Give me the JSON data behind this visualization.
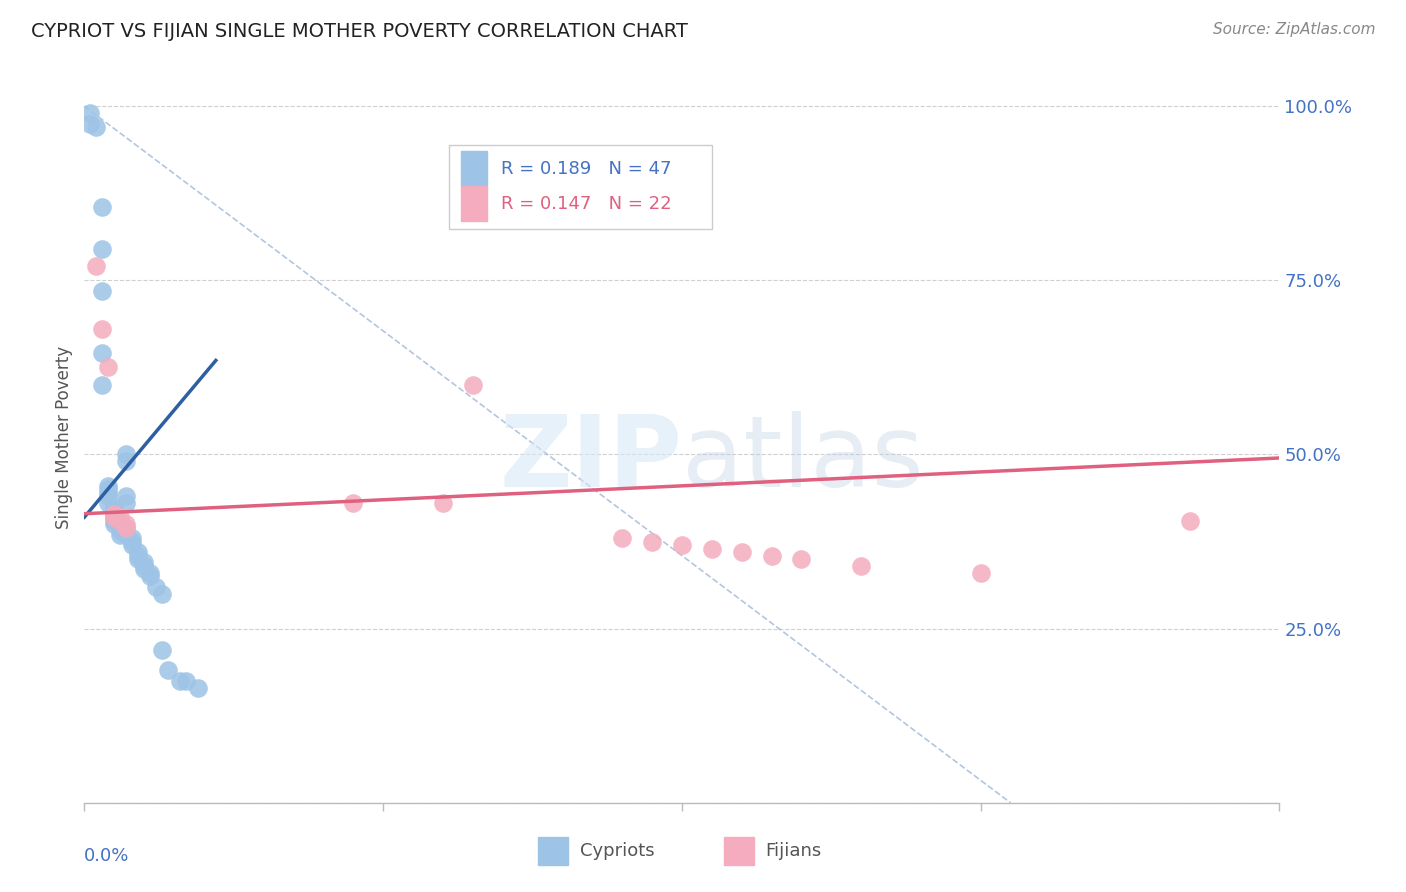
{
  "title": "CYPRIOT VS FIJIAN SINGLE MOTHER POVERTY CORRELATION CHART",
  "source": "Source: ZipAtlas.com",
  "ylabel": "Single Mother Poverty",
  "xmin": 0.0,
  "xmax": 0.2,
  "ymin": 0.0,
  "ymax": 1.05,
  "cypriot_color": "#9dc3e6",
  "fijian_color": "#f4acbe",
  "cypriot_line_color": "#2e5fa3",
  "fijian_line_color": "#e06080",
  "ref_line_color": "#a0b8d8",
  "R_cypriot": "0.189",
  "N_cypriot": "47",
  "R_fijian": "0.147",
  "N_fijian": "22",
  "watermark_color": "#d8e8f5",
  "grid_color": "#d0d0d0",
  "axis_label_color": "#4472c4",
  "background_color": "#ffffff",
  "cypriot_x": [
    0.001,
    0.001,
    0.002,
    0.003,
    0.003,
    0.003,
    0.003,
    0.003,
    0.004,
    0.004,
    0.004,
    0.004,
    0.004,
    0.005,
    0.005,
    0.005,
    0.005,
    0.005,
    0.005,
    0.006,
    0.006,
    0.006,
    0.006,
    0.007,
    0.007,
    0.007,
    0.007,
    0.007,
    0.007,
    0.008,
    0.008,
    0.008,
    0.009,
    0.009,
    0.009,
    0.01,
    0.01,
    0.01,
    0.011,
    0.011,
    0.012,
    0.013,
    0.013,
    0.014,
    0.016,
    0.017,
    0.019
  ],
  "cypriot_y": [
    0.99,
    0.975,
    0.97,
    0.855,
    0.795,
    0.735,
    0.645,
    0.6,
    0.455,
    0.45,
    0.445,
    0.44,
    0.43,
    0.425,
    0.42,
    0.415,
    0.41,
    0.405,
    0.4,
    0.4,
    0.395,
    0.39,
    0.385,
    0.5,
    0.49,
    0.44,
    0.43,
    0.395,
    0.385,
    0.38,
    0.375,
    0.37,
    0.36,
    0.355,
    0.35,
    0.345,
    0.34,
    0.335,
    0.33,
    0.325,
    0.31,
    0.3,
    0.22,
    0.19,
    0.175,
    0.175,
    0.165
  ],
  "fijian_x": [
    0.002,
    0.003,
    0.004,
    0.005,
    0.005,
    0.006,
    0.006,
    0.007,
    0.007,
    0.045,
    0.06,
    0.065,
    0.09,
    0.095,
    0.1,
    0.105,
    0.11,
    0.115,
    0.12,
    0.13,
    0.15,
    0.185
  ],
  "fijian_y": [
    0.77,
    0.68,
    0.625,
    0.415,
    0.41,
    0.41,
    0.405,
    0.4,
    0.395,
    0.43,
    0.43,
    0.6,
    0.38,
    0.375,
    0.37,
    0.365,
    0.36,
    0.355,
    0.35,
    0.34,
    0.33,
    0.405
  ],
  "cyp_line_x0": 0.0,
  "cyp_line_y0": 0.41,
  "cyp_line_x1": 0.022,
  "cyp_line_y1": 0.635,
  "fij_line_x0": 0.0,
  "fij_line_y0": 0.415,
  "fij_line_x1": 0.2,
  "fij_line_y1": 0.495,
  "ref_line_x0": 0.0,
  "ref_line_y0": 1.0,
  "ref_line_x1": 0.155,
  "ref_line_y1": 0.0
}
